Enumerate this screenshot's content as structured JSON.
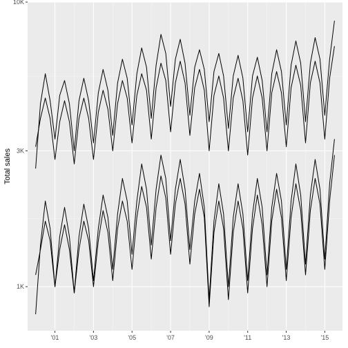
{
  "chart_data": {
    "type": "line",
    "title": "",
    "xlabel": "",
    "ylabel": "Total sales",
    "y_scale": "log",
    "ylim": [
      700,
      10000
    ],
    "xlim": [
      "1999-08",
      "2015-12"
    ],
    "y_ticks": [
      {
        "value": 1000,
        "label": "1K"
      },
      {
        "value": 3000,
        "label": "3K"
      },
      {
        "value": 10000,
        "label": "10K"
      }
    ],
    "x_ticks": [
      {
        "value": "2001-01",
        "label": "'01"
      },
      {
        "value": "2003-01",
        "label": "'03"
      },
      {
        "value": "2005-01",
        "label": "'05"
      },
      {
        "value": "2007-01",
        "label": "'07"
      },
      {
        "value": "2009-01",
        "label": "'09"
      },
      {
        "value": "2011-01",
        "label": "'11"
      },
      {
        "value": "2013-01",
        "label": "'13"
      },
      {
        "value": "2015-01",
        "label": "'15"
      }
    ],
    "grid": true,
    "legend": "none",
    "line_color": "#000000",
    "series": [
      {
        "x": [
          "2000-01",
          "2000-04",
          "2000-07",
          "2000-10",
          "2001-01",
          "2001-04",
          "2001-07",
          "2001-10",
          "2002-01",
          "2002-04",
          "2002-07",
          "2002-10",
          "2003-01",
          "2003-04",
          "2003-07",
          "2003-10",
          "2004-01",
          "2004-04",
          "2004-07",
          "2004-10",
          "2005-01",
          "2005-04",
          "2005-07",
          "2005-10",
          "2006-01",
          "2006-04",
          "2006-07",
          "2006-10",
          "2007-01",
          "2007-04",
          "2007-07",
          "2007-10",
          "2008-01",
          "2008-04",
          "2008-07",
          "2008-10",
          "2009-01",
          "2009-04",
          "2009-07",
          "2009-10",
          "2010-01",
          "2010-04",
          "2010-07",
          "2010-10",
          "2011-01",
          "2011-04",
          "2011-07",
          "2011-10",
          "2012-01",
          "2012-04",
          "2012-07",
          "2012-10",
          "2013-01",
          "2013-04",
          "2013-07",
          "2013-10",
          "2014-01",
          "2014-04",
          "2014-07",
          "2014-10",
          "2015-01",
          "2015-04",
          "2015-07"
        ],
        "values": [
          2600,
          4400,
          5600,
          4500,
          3300,
          4700,
          5300,
          4400,
          3000,
          4500,
          5400,
          4500,
          3200,
          4800,
          5800,
          4900,
          3400,
          5200,
          6300,
          5400,
          3700,
          5600,
          6900,
          5900,
          3900,
          6000,
          7700,
          6600,
          4300,
          6300,
          7400,
          6100,
          4000,
          5900,
          6800,
          5800,
          3800,
          5700,
          6600,
          5500,
          3600,
          5500,
          6500,
          5400,
          3500,
          5500,
          6400,
          5300,
          3500,
          5600,
          6800,
          5700,
          3700,
          6000,
          7300,
          6100,
          3800,
          6100,
          7500,
          6300,
          4000,
          6300,
          8600
        ]
      },
      {
        "x": [
          "2000-01",
          "2000-04",
          "2000-07",
          "2000-10",
          "2001-01",
          "2001-04",
          "2001-07",
          "2001-10",
          "2002-01",
          "2002-04",
          "2002-07",
          "2002-10",
          "2003-01",
          "2003-04",
          "2003-07",
          "2003-10",
          "2004-01",
          "2004-04",
          "2004-07",
          "2004-10",
          "2005-01",
          "2005-04",
          "2005-07",
          "2005-10",
          "2006-01",
          "2006-04",
          "2006-07",
          "2006-10",
          "2007-01",
          "2007-04",
          "2007-07",
          "2007-10",
          "2008-01",
          "2008-04",
          "2008-07",
          "2008-10",
          "2009-01",
          "2009-04",
          "2009-07",
          "2009-10",
          "2010-01",
          "2010-04",
          "2010-07",
          "2010-10",
          "2011-01",
          "2011-04",
          "2011-07",
          "2011-10",
          "2012-01",
          "2012-04",
          "2012-07",
          "2012-10",
          "2013-01",
          "2013-04",
          "2013-07",
          "2013-10",
          "2014-01",
          "2014-04",
          "2014-07",
          "2014-10",
          "2015-01",
          "2015-04",
          "2015-07"
        ],
        "values": [
          3100,
          3900,
          4600,
          3900,
          2800,
          3800,
          4500,
          3800,
          2700,
          3900,
          4600,
          3900,
          2800,
          4100,
          4900,
          4200,
          3000,
          4400,
          5300,
          4600,
          3200,
          4700,
          5600,
          4900,
          3300,
          5000,
          6100,
          5300,
          3500,
          5200,
          6200,
          5200,
          3400,
          5000,
          5800,
          4900,
          3000,
          4700,
          5500,
          4600,
          3000,
          4600,
          5400,
          4500,
          2900,
          4600,
          5500,
          4600,
          3000,
          4800,
          5700,
          4800,
          3100,
          5000,
          6000,
          5100,
          3200,
          5200,
          6200,
          5200,
          3300,
          5400,
          7000
        ]
      },
      {
        "x": [
          "2000-01",
          "2000-04",
          "2000-07",
          "2000-10",
          "2001-01",
          "2001-04",
          "2001-07",
          "2001-10",
          "2002-01",
          "2002-04",
          "2002-07",
          "2002-10",
          "2003-01",
          "2003-04",
          "2003-07",
          "2003-10",
          "2004-01",
          "2004-04",
          "2004-07",
          "2004-10",
          "2005-01",
          "2005-04",
          "2005-07",
          "2005-10",
          "2006-01",
          "2006-04",
          "2006-07",
          "2006-10",
          "2007-01",
          "2007-04",
          "2007-07",
          "2007-10",
          "2008-01",
          "2008-04",
          "2008-07",
          "2008-10",
          "2009-01",
          "2009-04",
          "2009-07",
          "2009-10",
          "2010-01",
          "2010-04",
          "2010-07",
          "2010-10",
          "2011-01",
          "2011-04",
          "2011-07",
          "2011-10",
          "2012-01",
          "2012-04",
          "2012-07",
          "2012-10",
          "2013-01",
          "2013-04",
          "2013-07",
          "2013-10",
          "2014-01",
          "2014-04",
          "2014-07",
          "2014-10",
          "2015-01",
          "2015-04",
          "2015-07"
        ],
        "values": [
          800,
          1400,
          2000,
          1600,
          1000,
          1500,
          1900,
          1500,
          950,
          1500,
          1950,
          1600,
          1050,
          1600,
          2100,
          1750,
          1150,
          1800,
          2400,
          2000,
          1300,
          2000,
          2700,
          2200,
          1400,
          2200,
          2900,
          2400,
          1450,
          2200,
          2800,
          2200,
          1350,
          2000,
          2500,
          1900,
          900,
          1700,
          2300,
          1800,
          1000,
          1750,
          2300,
          1800,
          1050,
          1800,
          2400,
          1900,
          1100,
          1900,
          2500,
          2000,
          1150,
          2000,
          2700,
          2100,
          1200,
          2100,
          2800,
          2200,
          1250,
          2300,
          3300
        ]
      },
      {
        "x": [
          "2000-01",
          "2000-04",
          "2000-07",
          "2000-10",
          "2001-01",
          "2001-04",
          "2001-07",
          "2001-10",
          "2002-01",
          "2002-04",
          "2002-07",
          "2002-10",
          "2003-01",
          "2003-04",
          "2003-07",
          "2003-10",
          "2004-01",
          "2004-04",
          "2004-07",
          "2004-10",
          "2005-01",
          "2005-04",
          "2005-07",
          "2005-10",
          "2006-01",
          "2006-04",
          "2006-07",
          "2006-10",
          "2007-01",
          "2007-04",
          "2007-07",
          "2007-10",
          "2008-01",
          "2008-04",
          "2008-07",
          "2008-10",
          "2009-01",
          "2009-04",
          "2009-07",
          "2009-10",
          "2010-01",
          "2010-04",
          "2010-07",
          "2010-10",
          "2011-01",
          "2011-04",
          "2011-07",
          "2011-10",
          "2012-01",
          "2012-04",
          "2012-07",
          "2012-10",
          "2013-01",
          "2013-04",
          "2013-07",
          "2013-10",
          "2014-01",
          "2014-04",
          "2014-07",
          "2014-10",
          "2015-01",
          "2015-04",
          "2015-07"
        ],
        "values": [
          1100,
          1350,
          1700,
          1450,
          1000,
          1350,
          1650,
          1350,
          950,
          1350,
          1700,
          1450,
          1000,
          1450,
          1850,
          1550,
          1050,
          1600,
          2000,
          1700,
          1150,
          1750,
          2250,
          1900,
          1250,
          1900,
          2450,
          2050,
          1300,
          1950,
          2400,
          1950,
          1200,
          1800,
          2200,
          1750,
          850,
          1550,
          2000,
          1600,
          900,
          1550,
          2000,
          1600,
          950,
          1600,
          2100,
          1650,
          1000,
          1700,
          2200,
          1750,
          1050,
          1750,
          2300,
          1850,
          1100,
          1850,
          2400,
          1950,
          1150,
          2000,
          2900
        ]
      }
    ]
  }
}
